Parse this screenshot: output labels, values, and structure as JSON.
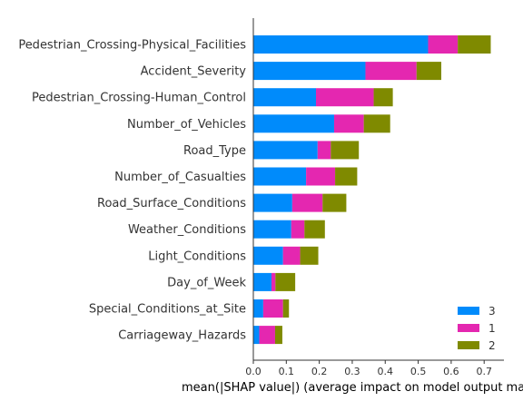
{
  "chart_data": {
    "type": "bar",
    "orientation": "horizontal",
    "stacked": true,
    "categories": [
      "Pedestrian_Crossing-Physical_Facilities",
      "Accident_Severity",
      "Pedestrian_Crossing-Human_Control",
      "Number_of_Vehicles",
      "Road_Type",
      "Number_of_Casualties",
      "Road_Surface_Conditions",
      "Weather_Conditions",
      "Light_Conditions",
      "Day_of_Week",
      "Special_Conditions_at_Site",
      "Carriageway_Hazards"
    ],
    "series": [
      {
        "name": "3",
        "color": "#008bfb",
        "values": [
          0.53,
          0.34,
          0.19,
          0.245,
          0.195,
          0.16,
          0.118,
          0.115,
          0.09,
          0.055,
          0.03,
          0.018
        ]
      },
      {
        "name": "1",
        "color": "#e427b0",
        "values": [
          0.09,
          0.155,
          0.175,
          0.09,
          0.04,
          0.088,
          0.092,
          0.04,
          0.052,
          0.012,
          0.06,
          0.048
        ]
      },
      {
        "name": "2",
        "color": "#7f8a00",
        "values": [
          0.1,
          0.075,
          0.058,
          0.08,
          0.085,
          0.067,
          0.072,
          0.062,
          0.055,
          0.06,
          0.018,
          0.022
        ]
      }
    ],
    "xlabel": "mean(|SHAP value|) (average impact on model output magnitude)",
    "ylabel": "",
    "title": "",
    "xlim": [
      0.0,
      0.76
    ],
    "xticks": [
      "0.0",
      "0.1",
      "0.2",
      "0.3",
      "0.4",
      "0.5",
      "0.6",
      "0.7"
    ],
    "grid": false,
    "legend": {
      "placement": "bottom-right",
      "entries": [
        "3",
        "1",
        "2"
      ]
    }
  }
}
